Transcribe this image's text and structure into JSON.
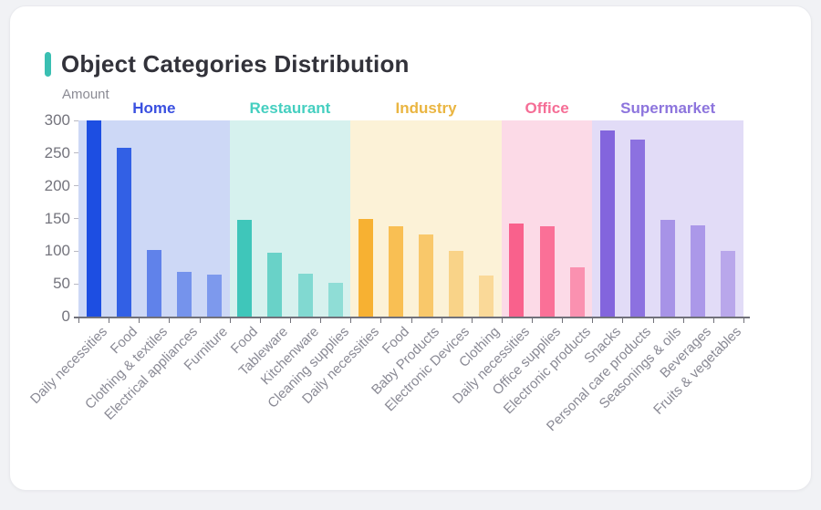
{
  "card": {
    "accent_color": "#3abfb2"
  },
  "chart_data": {
    "type": "bar",
    "title": "Object Categories Distribution",
    "ylabel": "Amount",
    "xlabel": "",
    "ylim": [
      0,
      300
    ],
    "yticks": [
      0,
      50,
      100,
      150,
      200,
      250,
      300
    ],
    "grid": false,
    "legend_position": "none",
    "group_header_row": true,
    "groups": [
      {
        "name": "Home",
        "header_color": "#3a50e0",
        "bar_color": "#1d4ee2",
        "band_color": "#cdd8f6",
        "bar_opacities": [
          1,
          0.88,
          0.62,
          0.5,
          0.45
        ],
        "bars": [
          {
            "label": "Daily necessities",
            "value": 300
          },
          {
            "label": "Food",
            "value": 258
          },
          {
            "label": "Clothing & textiles",
            "value": 102
          },
          {
            "label": "Electrical appliances",
            "value": 69
          },
          {
            "label": "Furniture",
            "value": 64
          }
        ]
      },
      {
        "name": "Restaurant",
        "header_color": "#45cfc0",
        "bar_color": "#3fc6ba",
        "band_color": "#d6f1ee",
        "bar_opacities": [
          1,
          0.72,
          0.56,
          0.47
        ],
        "bars": [
          {
            "label": "Food",
            "value": 148
          },
          {
            "label": "Tableware",
            "value": 97
          },
          {
            "label": "Kitchenware",
            "value": 65
          },
          {
            "label": "Cleaning supplies",
            "value": 51
          }
        ]
      },
      {
        "name": "Industry",
        "header_color": "#eab541",
        "bar_color": "#f7b132",
        "band_color": "#fcf2d7",
        "bar_opacities": [
          1,
          0.8,
          0.66,
          0.48,
          0.38
        ],
        "bars": [
          {
            "label": "Daily necessities",
            "value": 150
          },
          {
            "label": "Food",
            "value": 138
          },
          {
            "label": "Baby Products",
            "value": 126
          },
          {
            "label": "Electronic Devices",
            "value": 100
          },
          {
            "label": "Clothing",
            "value": 63
          }
        ]
      },
      {
        "name": "Office",
        "header_color": "#f56e96",
        "bar_color": "#f9618c",
        "band_color": "#fcdae7",
        "bar_opacities": [
          1,
          0.88,
          0.6
        ],
        "bars": [
          {
            "label": "Daily necessities",
            "value": 142
          },
          {
            "label": "Office supplies",
            "value": 138
          },
          {
            "label": "Electronic products",
            "value": 75
          }
        ]
      },
      {
        "name": "Supermarket",
        "header_color": "#8d75dd",
        "bar_color": "#8365dd",
        "band_color": "#e2dcf7",
        "bar_opacities": [
          1,
          0.9,
          0.62,
          0.57,
          0.44
        ],
        "bars": [
          {
            "label": "Snacks",
            "value": 285
          },
          {
            "label": "Personal care products",
            "value": 271
          },
          {
            "label": "Seasonings & oils",
            "value": 148
          },
          {
            "label": "Beverages",
            "value": 140
          },
          {
            "label": "Fruits & vegetables",
            "value": 101
          }
        ]
      }
    ]
  }
}
